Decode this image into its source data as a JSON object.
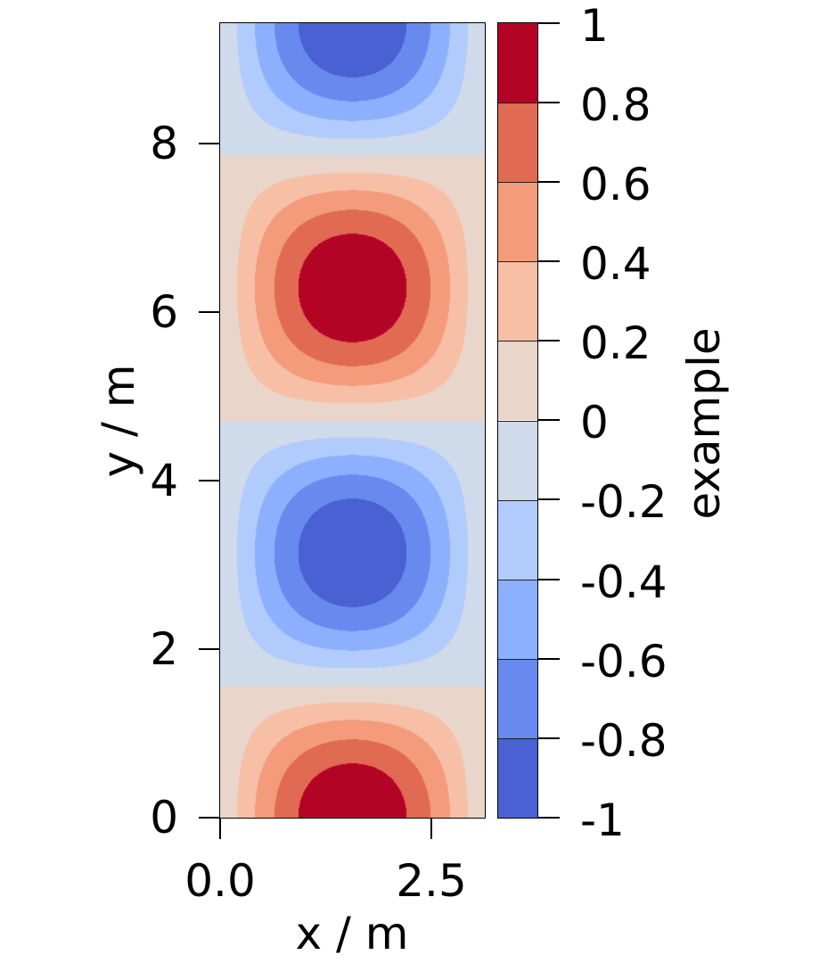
{
  "chart_data": {
    "type": "heatmap",
    "subtype": "filled-contour",
    "function_depicted": "sin(x) * cos(y)",
    "title": "",
    "xlabel": "x / m",
    "ylabel": "y / m",
    "colorbar_label": "example",
    "colormap": "coolwarm",
    "xlim": [
      0,
      3.1416
    ],
    "ylim": [
      0,
      9.4248
    ],
    "xticks": [
      0.0,
      2.5
    ],
    "xtick_labels": [
      "0.0",
      "2.5"
    ],
    "yticks": [
      0,
      2,
      4,
      6,
      8
    ],
    "ytick_labels": [
      "0",
      "2",
      "4",
      "6",
      "8"
    ],
    "levels": [
      -1,
      -0.8,
      -0.6,
      -0.4,
      -0.2,
      0,
      0.2,
      0.4,
      0.6,
      0.8,
      1
    ],
    "level_labels": [
      "-1",
      "-0.8",
      "-0.6",
      "-0.4",
      "-0.2",
      "0",
      "0.2",
      "0.4",
      "0.6",
      "0.8",
      "1"
    ],
    "level_colors": [
      "#4961d2",
      "#6889ee",
      "#8db0fe",
      "#b1cbfc",
      "#cfdaea",
      "#ead5cb",
      "#f6bfa6",
      "#f39b7b",
      "#e16a53",
      "#b40426"
    ],
    "extrema": [
      {
        "x": 1.5708,
        "y": 0.0,
        "value": 1,
        "kind": "max"
      },
      {
        "x": 1.5708,
        "y": 3.1416,
        "value": -1,
        "kind": "min"
      },
      {
        "x": 1.5708,
        "y": 6.2832,
        "value": 1,
        "kind": "max"
      },
      {
        "x": 1.5708,
        "y": 9.4248,
        "value": -1,
        "kind": "min"
      }
    ],
    "grid": false,
    "legend_position": "colorbar-right"
  },
  "axes": {
    "xlabel": "x / m",
    "ylabel": "y / m",
    "colorbar_label": "example",
    "xticks": [
      "0.0",
      "2.5"
    ],
    "yticks": [
      "0",
      "2",
      "4",
      "6",
      "8"
    ],
    "cbar_ticks": [
      "1",
      "0.8",
      "0.6",
      "0.4",
      "0.2",
      "0",
      "-0.2",
      "-0.4",
      "-0.6",
      "-0.8",
      "-1"
    ]
  }
}
